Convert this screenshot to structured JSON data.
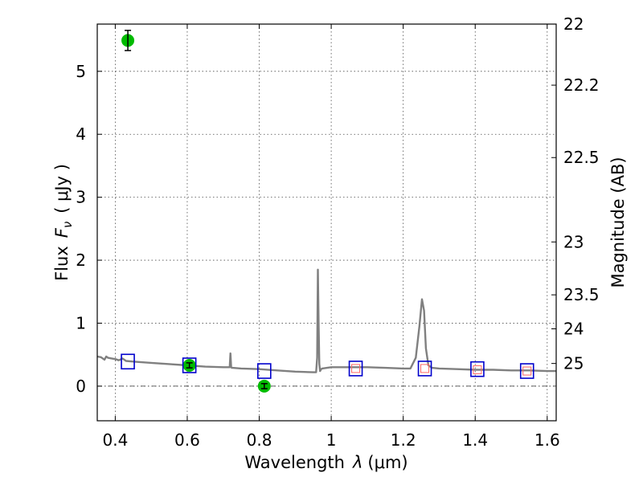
{
  "chart_data": {
    "type": "scatter",
    "xlabel": "Wavelength",
    "xlabel_symbol": "λ",
    "xlabel_unit": "(μm)",
    "ylabel": "Flux",
    "ylabel_symbol": "F",
    "ylabel_subscript": "ν",
    "ylabel_unit": "( μJy )",
    "y2label": "Magnitude (AB)",
    "xlim": [
      0.35,
      1.625
    ],
    "ylim": [
      -0.55,
      5.75
    ],
    "grid": true,
    "x_ticks": [
      0.4,
      0.6,
      0.8,
      1.0,
      1.2,
      1.4,
      1.6
    ],
    "x_tick_labels": [
      "0.4",
      "0.6",
      "0.8",
      "1",
      "1.2",
      "1.4",
      "1.6"
    ],
    "y_ticks": [
      0,
      1,
      2,
      3,
      4,
      5
    ],
    "y_tick_labels": [
      "0",
      "1",
      "2",
      "3",
      "4",
      "5"
    ],
    "y2_ticks": [
      {
        "label": "22",
        "flux": 5.75
      },
      {
        "label": "22.2",
        "flux": 4.78
      },
      {
        "label": "22.5",
        "flux": 3.63
      },
      {
        "label": "23",
        "flux": 2.29
      },
      {
        "label": "23.5",
        "flux": 1.45
      },
      {
        "label": "24",
        "flux": 0.91
      },
      {
        "label": "25",
        "flux": 0.36
      }
    ],
    "series": [
      {
        "kind": "line",
        "color": "#808080",
        "x": [
          0.35,
          0.36,
          0.37,
          0.375,
          0.38,
          0.39,
          0.4,
          0.41,
          0.42,
          0.43,
          0.45,
          0.5,
          0.55,
          0.6,
          0.65,
          0.7,
          0.718,
          0.72,
          0.722,
          0.724,
          0.726,
          0.75,
          0.8,
          0.85,
          0.9,
          0.95,
          0.958,
          0.961,
          0.963,
          0.965,
          0.967,
          0.969,
          0.972,
          0.975,
          1.0,
          1.05,
          1.1,
          1.15,
          1.2,
          1.22,
          1.235,
          1.245,
          1.252,
          1.258,
          1.263,
          1.27,
          1.28,
          1.3,
          1.35,
          1.4,
          1.45,
          1.5,
          1.55,
          1.6,
          1.625
        ],
        "y": [
          0.47,
          0.46,
          0.42,
          0.47,
          0.45,
          0.44,
          0.43,
          0.41,
          0.44,
          0.4,
          0.39,
          0.37,
          0.35,
          0.33,
          0.31,
          0.3,
          0.3,
          0.52,
          0.3,
          0.29,
          0.29,
          0.28,
          0.27,
          0.25,
          0.23,
          0.22,
          0.22,
          0.45,
          1.85,
          1.0,
          0.35,
          0.24,
          0.27,
          0.28,
          0.3,
          0.3,
          0.3,
          0.29,
          0.28,
          0.28,
          0.45,
          0.95,
          1.38,
          1.2,
          0.6,
          0.33,
          0.29,
          0.28,
          0.27,
          0.26,
          0.26,
          0.25,
          0.25,
          0.24,
          0.24
        ]
      },
      {
        "kind": "points",
        "marker": "circle",
        "color": "#00bb00",
        "points": [
          {
            "x": 0.435,
            "y": 5.49,
            "err": 0.16
          },
          {
            "x": 0.606,
            "y": 0.33,
            "err": 0.04
          },
          {
            "x": 0.814,
            "y": 0.0,
            "err": 0.04
          }
        ]
      },
      {
        "kind": "points",
        "marker": "square",
        "color": "#0000cc",
        "x": [
          0.435,
          0.606,
          0.814,
          1.068,
          1.26,
          1.406,
          1.544
        ],
        "y": [
          0.39,
          0.33,
          0.24,
          0.28,
          0.28,
          0.27,
          0.24
        ]
      },
      {
        "kind": "points",
        "marker": "small-square",
        "color": "#ff6666",
        "x": [
          1.068,
          1.26,
          1.406,
          1.544
        ],
        "y": [
          0.28,
          0.28,
          0.26,
          0.24
        ]
      }
    ]
  }
}
